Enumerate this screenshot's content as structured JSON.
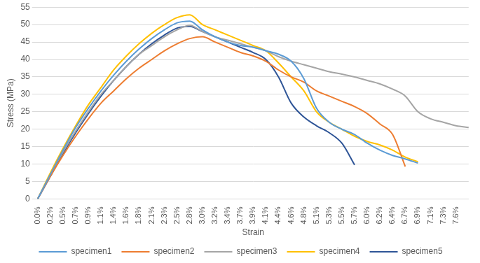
{
  "chart_data": {
    "type": "line",
    "x_label": "Strain",
    "y_label": "Stress (MPa)",
    "categories": [
      "0.0%",
      "0.2%",
      "0.5%",
      "0.7%",
      "0.9%",
      "1.1%",
      "1.4%",
      "1.6%",
      "1.8%",
      "2.1%",
      "2.3%",
      "2.5%",
      "2.8%",
      "3.0%",
      "3.2%",
      "3.4%",
      "3.7%",
      "3.9%",
      "4.1%",
      "4.4%",
      "4.6%",
      "4.8%",
      "5.1%",
      "5.3%",
      "5.5%",
      "5.7%",
      "6.0%",
      "6.2%",
      "6.4%",
      "6.7%",
      "6.9%",
      "7.1%",
      "7.3%",
      "7.6%",
      null
    ],
    "ylim": [
      0,
      55
    ],
    "yticks": [
      0,
      5,
      10,
      15,
      20,
      25,
      30,
      35,
      40,
      45,
      50,
      55
    ],
    "grid": "y",
    "legend": "bottom",
    "line_style": "solid",
    "series": [
      {
        "name": "specimen1",
        "color": "#5b9bd5",
        "values": [
          0,
          7,
          14,
          20.5,
          26,
          31,
          35.5,
          39.5,
          43,
          46,
          48.5,
          50.5,
          51,
          48.5,
          46.5,
          45,
          44,
          43.5,
          42.5,
          41.5,
          39.5,
          34.5,
          26,
          22,
          20,
          18.5,
          16,
          14,
          12.5,
          11.5,
          10.3,
          null,
          null,
          null,
          null
        ]
      },
      {
        "name": "specimen2",
        "color": "#ed7d31",
        "values": [
          0,
          6.5,
          12.5,
          18,
          23,
          27.5,
          31,
          34.5,
          37.5,
          40,
          42.5,
          44.5,
          46,
          46.5,
          45,
          43.5,
          42,
          41,
          39.5,
          37,
          35,
          33.5,
          31,
          29.5,
          28,
          26.5,
          24.5,
          21.5,
          18.5,
          9.3,
          null,
          null,
          null,
          null,
          null
        ]
      },
      {
        "name": "specimen3",
        "color": "#a5a5a5",
        "values": [
          0,
          7,
          13.5,
          19.5,
          25,
          30,
          34,
          38,
          41.5,
          44,
          46.5,
          48.5,
          49.8,
          48,
          46.5,
          45.5,
          44.5,
          43.5,
          42.5,
          40.8,
          39.5,
          38.5,
          37.5,
          36.5,
          35.8,
          35,
          34,
          33,
          31.5,
          29.5,
          25,
          23,
          22,
          21,
          20.5
        ]
      },
      {
        "name": "specimen4",
        "color": "#ffc000",
        "values": [
          0,
          7.5,
          14.5,
          21,
          27,
          32,
          37,
          41,
          44.5,
          47.5,
          50,
          52,
          52.8,
          50,
          48.5,
          47,
          45.5,
          44,
          42.5,
          39,
          35,
          31,
          25,
          22,
          20,
          18,
          16.5,
          15.5,
          14,
          12,
          10.7,
          null,
          null,
          null,
          null
        ]
      },
      {
        "name": "specimen5",
        "color": "#2f5597",
        "values": [
          0,
          6.5,
          13,
          19,
          24.5,
          29.5,
          34,
          38,
          41.5,
          44.5,
          47,
          49,
          49.5,
          48,
          46.5,
          45,
          43.5,
          42,
          40,
          35,
          27.5,
          23.5,
          21,
          19,
          16,
          9.8,
          null,
          null,
          null,
          null,
          null,
          null,
          null,
          null,
          null
        ]
      }
    ]
  }
}
